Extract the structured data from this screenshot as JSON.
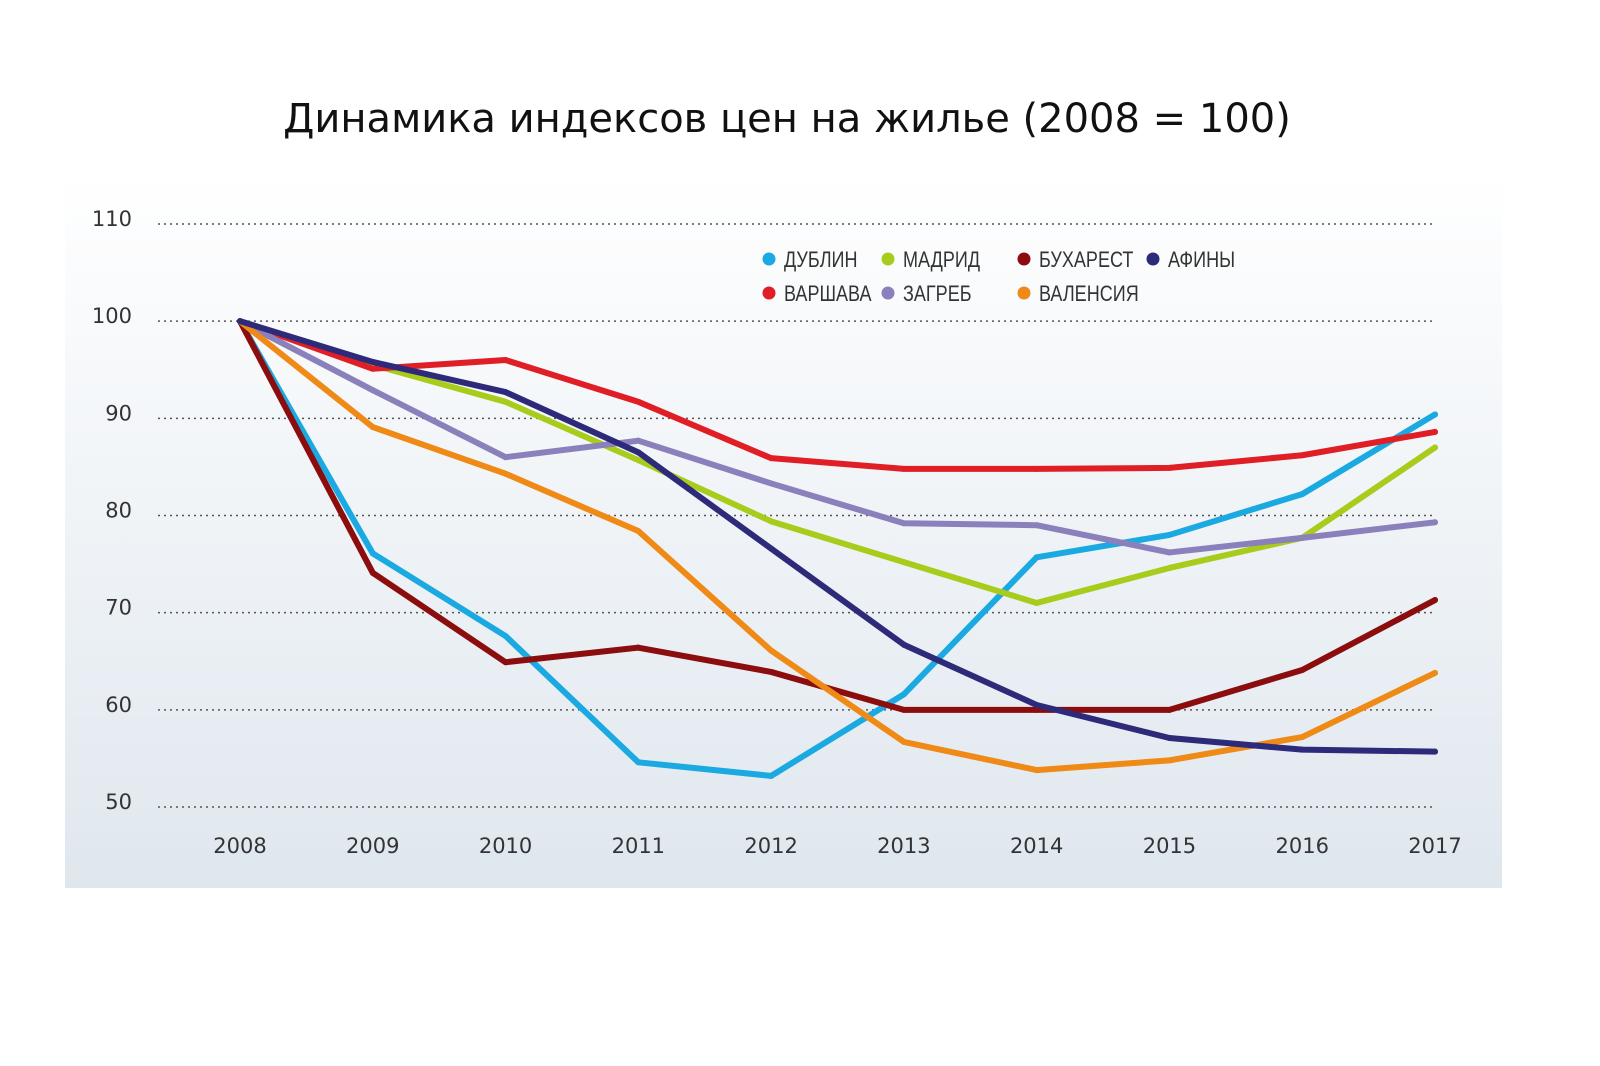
{
  "chart_data": {
    "type": "line",
    "title": "Динамика индексов цен на жилье (2008 = 100)",
    "xlabel": "",
    "ylabel": "",
    "x": [
      "2008",
      "2009",
      "2010",
      "2011",
      "2012",
      "2013",
      "2014",
      "2015",
      "2016",
      "2017"
    ],
    "ylim": [
      50,
      110
    ],
    "yticks": [
      "50",
      "60",
      "70",
      "80",
      "90",
      "100",
      "110"
    ],
    "grid": "horizontal dotted",
    "legend_position": "top-right",
    "series": [
      {
        "name": "ДУБЛИН",
        "color": "#1ba9e1",
        "values": [
          100,
          76.1,
          67.6,
          54.6,
          53.2,
          61.6,
          75.7,
          78.0,
          82.2,
          90.4
        ]
      },
      {
        "name": "МАДРИД",
        "color": "#a8cc1c",
        "values": [
          100,
          95.5,
          91.7,
          85.7,
          79.4,
          75.2,
          71.0,
          74.6,
          77.7,
          87.0
        ]
      },
      {
        "name": "БУХАРЕСТ",
        "color": "#8b0d0d",
        "values": [
          100,
          74.1,
          64.9,
          66.4,
          63.9,
          60.0,
          60.0,
          60.0,
          64.1,
          71.3
        ]
      },
      {
        "name": "ВАРШАВА",
        "color": "#e01e25",
        "values": [
          100,
          95.1,
          96.0,
          91.7,
          85.9,
          84.8,
          84.8,
          84.9,
          86.2,
          88.6
        ]
      },
      {
        "name": "ЗАГРЕБ",
        "color": "#8a80bb",
        "values": [
          100,
          92.9,
          86.0,
          87.7,
          83.3,
          79.2,
          79.0,
          76.2,
          77.7,
          79.3
        ]
      },
      {
        "name": "ВАЛЕНСИЯ",
        "color": "#ef8a17",
        "values": [
          100,
          89.1,
          84.3,
          78.4,
          66.1,
          56.7,
          53.8,
          54.8,
          57.2,
          63.8
        ]
      },
      {
        "name": "АФИНЫ",
        "color": "#2d2a7a",
        "values": [
          100,
          95.8,
          92.7,
          86.5,
          76.6,
          66.7,
          60.5,
          57.1,
          55.9,
          55.7
        ]
      }
    ]
  }
}
